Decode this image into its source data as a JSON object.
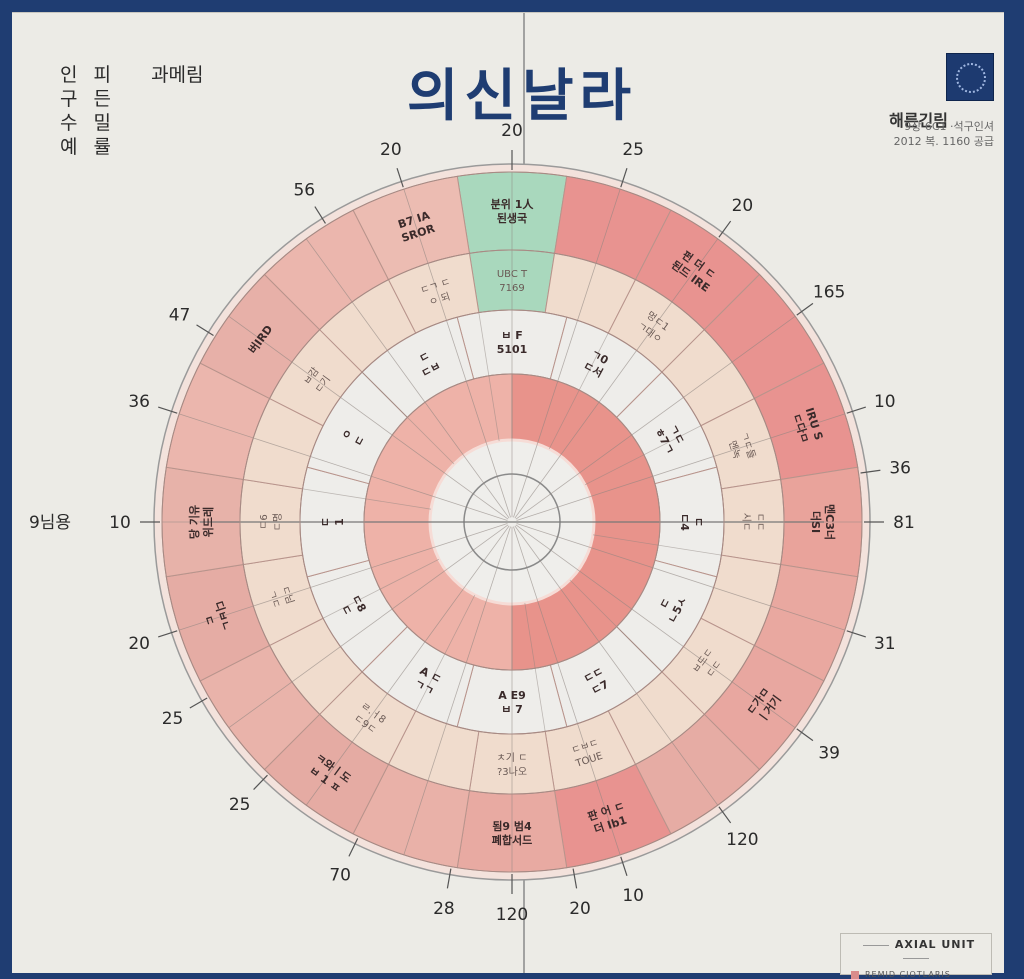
{
  "header": {
    "title": "의신날라",
    "left_block": {
      "col1": [
        "인",
        "구",
        "수",
        "예"
      ],
      "col2": [
        "피",
        "든",
        "밀",
        "률"
      ],
      "side": "과메림"
    },
    "right_block": {
      "brand": "해른긴림",
      "meta_line1": "9상 6C1 ·석구인셔",
      "meta_line2": "2012 복. 1160 공급"
    }
  },
  "left_axis_label": "9님용",
  "legend": {
    "title": "AXIAL UNIT",
    "item": "REMID CIOTLARIS"
  },
  "colors": {
    "frame": "#1f3d72",
    "paper": "#ecebe6",
    "outer_dark": "#e89390",
    "outer_mid": "#e6aaa2",
    "outer_light": "#ecbcb2",
    "highlight_green": "#a9d8bd",
    "beige": "#f0dccd",
    "light": "#ecebe6",
    "coral": "#eba59c",
    "title": "#1f3d72"
  },
  "chart_data": {
    "type": "radial",
    "title": "의신날라",
    "rings": [
      "outer",
      "beige",
      "light",
      "coral-core",
      "center"
    ],
    "ticks": [
      {
        "angle": -90,
        "label": "20"
      },
      {
        "angle": -72,
        "label": "25"
      },
      {
        "angle": -54,
        "label": "20"
      },
      {
        "angle": -36,
        "label": "165"
      },
      {
        "angle": -18,
        "label": "10"
      },
      {
        "angle": -8,
        "label": "36"
      },
      {
        "angle": 0,
        "label": "81"
      },
      {
        "angle": 18,
        "label": "31"
      },
      {
        "angle": 36,
        "label": "39"
      },
      {
        "angle": 54,
        "label": "120"
      },
      {
        "angle": 72,
        "label": "10"
      },
      {
        "angle": 80,
        "label": "20"
      },
      {
        "angle": 90,
        "label": "120"
      },
      {
        "angle": 100,
        "label": "28"
      },
      {
        "angle": 116,
        "label": "70"
      },
      {
        "angle": 134,
        "label": "25"
      },
      {
        "angle": 150,
        "label": "25"
      },
      {
        "angle": 162,
        "label": "20"
      },
      {
        "angle": 180,
        "label": "10"
      },
      {
        "angle": 198,
        "label": "36"
      },
      {
        "angle": 212,
        "label": "47"
      },
      {
        "angle": 238,
        "label": "56"
      },
      {
        "angle": 252,
        "label": "20"
      }
    ],
    "outer_segments": [
      {
        "start": -99,
        "end": -81,
        "color": "#a9d8bd",
        "label": [
          "분위 1人",
          "된생국"
        ]
      },
      {
        "start": -81,
        "end": -63,
        "color": "#e89390",
        "label": []
      },
      {
        "start": -63,
        "end": -45,
        "color": "#e89390",
        "label": [
          "펀 더 ㄷ",
          "된드 IRE"
        ]
      },
      {
        "start": -45,
        "end": -27,
        "color": "#e89390",
        "label": []
      },
      {
        "start": -27,
        "end": -9,
        "color": "#e89390",
        "label": [
          "IRU S",
          "ㄷ다ㅁ"
        ]
      },
      {
        "start": -9,
        "end": 9,
        "color": "#e9a39b",
        "label": [
          "멘C3너",
          "더SI"
        ]
      },
      {
        "start": 9,
        "end": 27,
        "color": "#e9a8a0",
        "label": []
      },
      {
        "start": 27,
        "end": 45,
        "color": "#e8a7a0",
        "label": [
          "ㄷ가ㅁ",
          "ㅣ거기"
        ]
      },
      {
        "start": 45,
        "end": 63,
        "color": "#e6aca4",
        "label": []
      },
      {
        "start": 63,
        "end": 81,
        "color": "#e89390",
        "label": [
          "판 어 ㄷ",
          "더 Ib1"
        ]
      },
      {
        "start": 81,
        "end": 99,
        "color": "#e8aaa2",
        "label": [
          "됨9 범4",
          "폐합서드"
        ]
      },
      {
        "start": 99,
        "end": 117,
        "color": "#e9b1a8",
        "label": []
      },
      {
        "start": 117,
        "end": 135,
        "color": "#e5aba3",
        "label": [
          "ㅋ와ㅣ도",
          "ㅂ 1 ㅍ"
        ]
      },
      {
        "start": 135,
        "end": 153,
        "color": "#e9b3aa",
        "label": []
      },
      {
        "start": 153,
        "end": 171,
        "color": "#e5aca4",
        "label": [
          "디ㅂㄴ",
          "ㄷ"
        ]
      },
      {
        "start": 171,
        "end": 189,
        "color": "#e7b2a9",
        "label": [
          "당 기유",
          "위드레"
        ]
      },
      {
        "start": 189,
        "end": 207,
        "color": "#ebb6ad",
        "label": []
      },
      {
        "start": 207,
        "end": 225,
        "color": "#e7b0a8",
        "label": [
          "버IRD"
        ]
      },
      {
        "start": 225,
        "end": 243,
        "color": "#ebb6ad",
        "label": []
      },
      {
        "start": 243,
        "end": 261,
        "color": "#ecbcb2",
        "label": [
          "B7 IA",
          "SROR"
        ]
      }
    ],
    "beige_segments": [
      {
        "start": -99,
        "end": -81,
        "color": "#a9d8bd",
        "label": [
          "UBC T",
          "7169"
        ]
      },
      {
        "start": -63,
        "end": -45,
        "label": [
          "멍ㄷ1",
          "ㄱ대ㅇ"
        ]
      },
      {
        "start": -27,
        "end": -9,
        "label": [
          "ㄱㄷ들",
          "멘녹"
        ]
      },
      {
        "start": -9,
        "end": 9,
        "label": [
          "ㄷㄷ",
          "시ㄷ"
        ]
      },
      {
        "start": 27,
        "end": 45,
        "label": [
          "ㅂ드ㄷ",
          "ㄷㄷ"
        ]
      },
      {
        "start": 63,
        "end": 81,
        "label": [
          "ㄷㅂㄷ",
          "TOUE"
        ]
      },
      {
        "start": 81,
        "end": 99,
        "label": [
          "ㅊ기 ㄷ",
          "?3나오"
        ]
      },
      {
        "start": 117,
        "end": 135,
        "label": [
          "ㄹ.ㅓ8",
          "ㄷ9ㄷ"
        ]
      },
      {
        "start": 153,
        "end": 171,
        "label": [
          "ㄷ님",
          "ㄱㄷ"
        ]
      },
      {
        "start": 171,
        "end": 189,
        "label": [
          "ㄷ6",
          "ㄷ명"
        ]
      },
      {
        "start": 207,
        "end": 225,
        "label": [
          "ㅂ감",
          "ㄷ기"
        ]
      },
      {
        "start": 243,
        "end": 261,
        "label": [
          "ㄷㄱ ㄷ",
          "ㅇ 되"
        ]
      }
    ],
    "light_segments": [
      {
        "angle": -90,
        "label": [
          "ㅂ F",
          "5101"
        ]
      },
      {
        "angle": -62,
        "label": [
          "ㄱ0",
          "ㄷ서"
        ]
      },
      {
        "angle": -28,
        "label": [
          "ㄱㄷ",
          "ㅎ7ㄱ"
        ]
      },
      {
        "angle": 0,
        "label": [
          "ㄷ",
          "ㄷ4"
        ]
      },
      {
        "angle": 28,
        "label": [
          "ㄷ",
          "ㄴ5ㅅ"
        ]
      },
      {
        "angle": 62,
        "label": [
          "ㄷㄷ",
          "ㄷ7"
        ]
      },
      {
        "angle": 90,
        "label": [
          "A E9",
          "ㅂ 7"
        ]
      },
      {
        "angle": 118,
        "label": [
          "A ㄷ",
          "ㄱㄱ"
        ]
      },
      {
        "angle": 152,
        "label": [
          "ㄷ8",
          "ㄷ"
        ]
      },
      {
        "angle": 180,
        "label": [
          "ㄷ",
          "1"
        ]
      },
      {
        "angle": 208,
        "label": [
          "ㅇ",
          "ㄷ"
        ]
      },
      {
        "angle": 242,
        "label": [
          "ㄷ",
          "ㄷㅂ"
        ]
      }
    ],
    "coral_segments": [
      {
        "start": -90,
        "end": 90,
        "color": "#e8938b"
      },
      {
        "start": 90,
        "end": 270,
        "color": "#eeb2a8"
      }
    ]
  }
}
